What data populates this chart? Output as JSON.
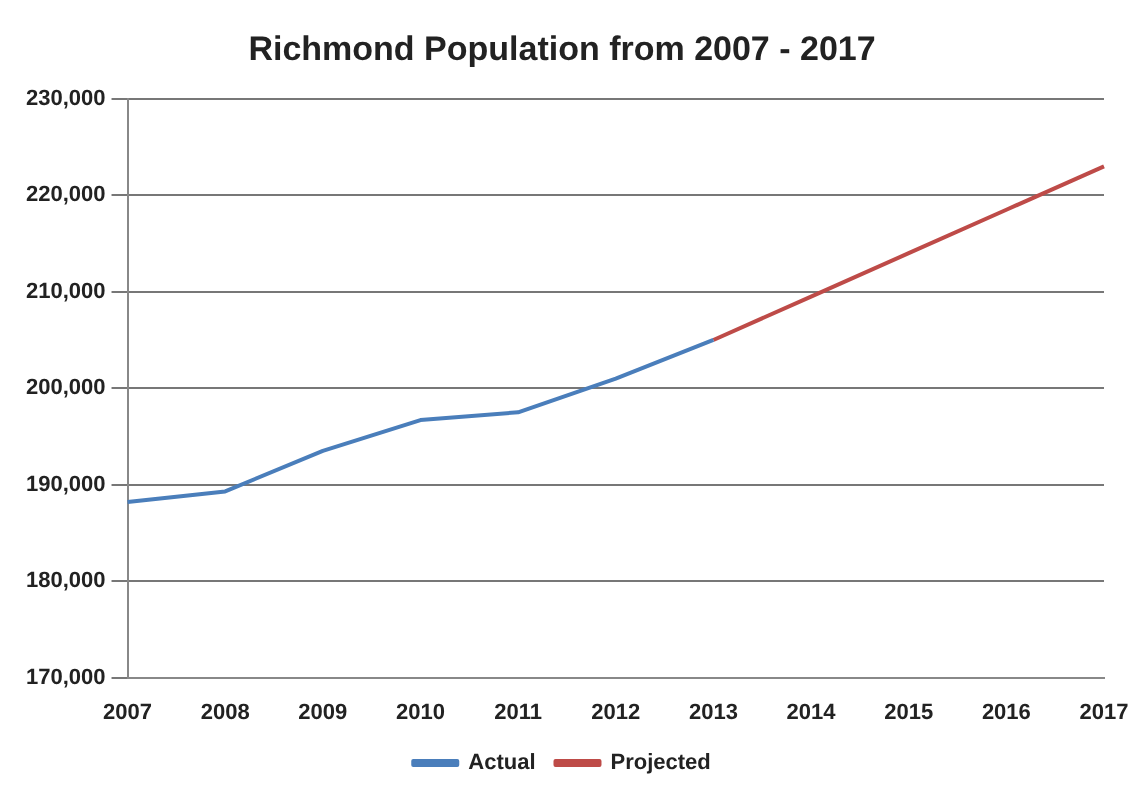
{
  "chart_data": {
    "type": "line",
    "title": "Richmond Population from 2007 - 2017",
    "categories": [
      "2007",
      "2008",
      "2009",
      "2010",
      "2011",
      "2012",
      "2013",
      "2014",
      "2015",
      "2016",
      "2017"
    ],
    "series": [
      {
        "name": "Actual",
        "color": "#4a7ebb",
        "values": [
          188200,
          189300,
          193500,
          196700,
          197500,
          201000,
          205000,
          null,
          null,
          null,
          null
        ]
      },
      {
        "name": "Projected",
        "color": "#be4b48",
        "values": [
          null,
          null,
          null,
          null,
          null,
          null,
          205000,
          209500,
          214000,
          218500,
          223000
        ]
      }
    ],
    "ylim": [
      170000,
      230000
    ],
    "yticks": [
      {
        "value": 170000,
        "label": "170,000"
      },
      {
        "value": 180000,
        "label": "180,000"
      },
      {
        "value": 190000,
        "label": "190,000"
      },
      {
        "value": 200000,
        "label": "200,000"
      },
      {
        "value": 210000,
        "label": "210,000"
      },
      {
        "value": 220000,
        "label": "220,000"
      },
      {
        "value": 230000,
        "label": "230,000"
      }
    ],
    "grid": "y",
    "legend": "bottom",
    "marker": "none",
    "line_style": "solid"
  }
}
